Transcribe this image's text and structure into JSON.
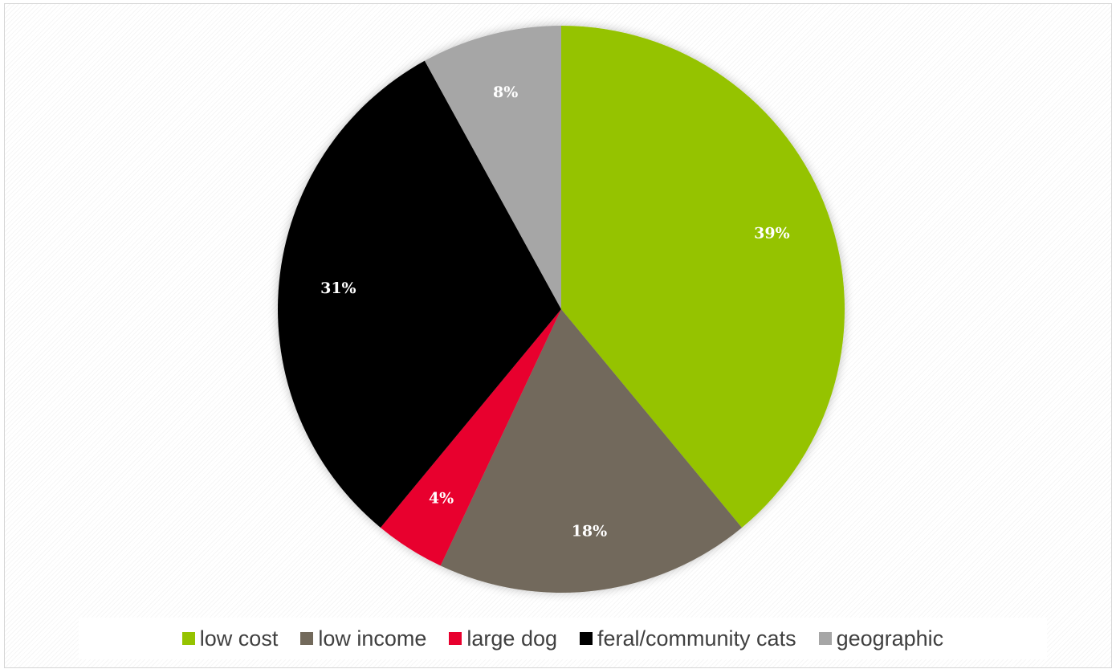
{
  "chart_data": {
    "type": "pie",
    "title": "",
    "categories": [
      "low cost",
      "low income",
      "large dog",
      "feral/community cats",
      "geographic"
    ],
    "values": [
      39,
      18,
      4,
      31,
      8
    ],
    "labels": [
      "39%",
      "18%",
      "4%",
      "31%",
      "8%"
    ],
    "colors": [
      "#95c300",
      "#72695b",
      "#e8002e",
      "#000000",
      "#a6a6a6"
    ],
    "start_angle": "12 o'clock",
    "direction": "clockwise",
    "legend_position": "bottom"
  },
  "legend": {
    "items": [
      {
        "label": "low cost",
        "color": "#95c300"
      },
      {
        "label": "low income",
        "color": "#72695b"
      },
      {
        "label": "large dog",
        "color": "#e8002e"
      },
      {
        "label": "feral/community cats",
        "color": "#000000"
      },
      {
        "label": "geographic",
        "color": "#a6a6a6"
      }
    ]
  }
}
